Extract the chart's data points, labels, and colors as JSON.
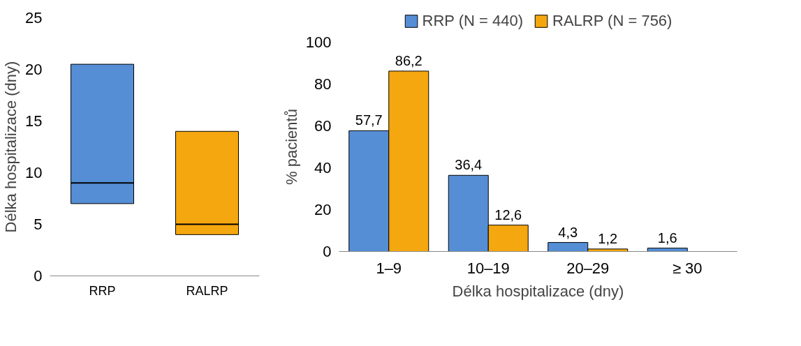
{
  "chart_data": [
    {
      "type": "box",
      "categories": [
        "RRP",
        "RALRP"
      ],
      "ylabel": "Délka hospitalizace (dny)",
      "ylim": [
        0,
        25
      ],
      "yticks": [
        0,
        5,
        10,
        15,
        20,
        25
      ],
      "grid": false,
      "colors": [
        "#558ed5",
        "#f5a70f"
      ],
      "boxes": [
        {
          "low": 7,
          "q1": 7,
          "median": 9,
          "q3": 20.5,
          "high": 20.5
        },
        {
          "low": 4,
          "q1": 4,
          "median": 5,
          "q3": 14,
          "high": 14
        }
      ]
    },
    {
      "type": "bar",
      "categories": [
        "1–9",
        "10–19",
        "20–29",
        "≥ 30"
      ],
      "xlabel": "Délka hospitalizace (dny)",
      "ylabel": "% pacientů",
      "ylim": [
        0,
        100
      ],
      "yticks": [
        0,
        20,
        40,
        60,
        80,
        100
      ],
      "grid": false,
      "legend": "top",
      "series": [
        {
          "name": "RRP (N = 440)",
          "color": "#558ed5",
          "values": [
            57.7,
            36.4,
            4.3,
            1.6
          ],
          "value_labels": [
            "57,7",
            "36,4",
            "4,3",
            "1,6"
          ]
        },
        {
          "name": "RALRP (N = 756)",
          "color": "#f5a70f",
          "values": [
            86.2,
            12.6,
            1.2,
            null
          ],
          "value_labels": [
            "86,2",
            "12,6",
            "1,2",
            null
          ]
        }
      ]
    }
  ]
}
